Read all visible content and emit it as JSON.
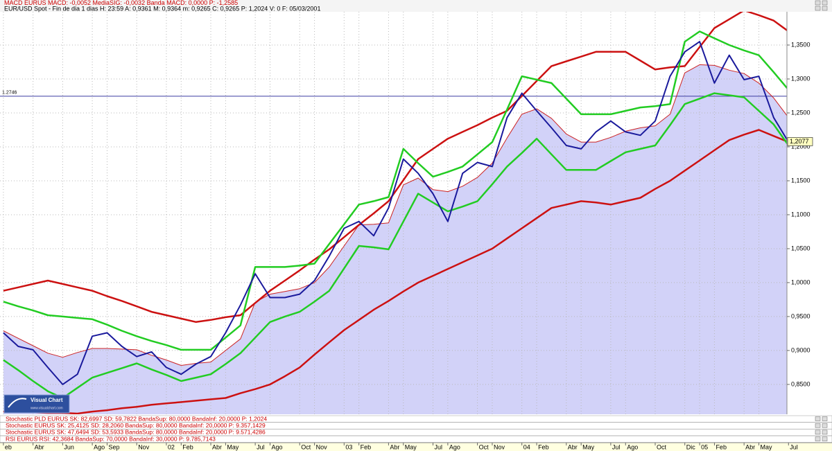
{
  "header": {
    "line1": "MACD EURUS MACD: -0,0052 MediaSIG: -0,0032 Banda MACD: 0,0000 P: -1,2585",
    "line2": "EUR/USD Spot - Fin de dia 1 dias H: 23:59 A: 0,9361 M: 0,9364 m: 0,9265 C: 0,9265 P: 1,2024 V: 0 F: 05/03/2001"
  },
  "logo": {
    "title": "Visual Chart",
    "url": "www.visualchart.com"
  },
  "indicators": [
    "Stochastic PLD EURUS SK: 82,6997 SD: 59,7822 BandaSup: 80,0000 BandaInf: 20,0000 P: 1,2024",
    "Stochastic EURUS SK: 25,4125 SD: 28,2060 BandaSup: 80,0000 BandaInf: 20,0000 P: 9.357,1429",
    "Stochastic EURUS SK: 47,6494 SD: 53,5933 BandaSup: 80,0000 BandaInf: 20,0000 P: 9.571,4286",
    "RSI EURUS RSI: 42,3684 BandaSup: 70,0000 BandaInf: 30,0000 P: 9.785,7143"
  ],
  "chart_data": {
    "type": "line",
    "grid": true,
    "x": [
      0,
      1,
      2,
      3,
      4,
      5,
      6,
      7,
      8,
      9,
      10,
      11,
      12,
      13,
      14,
      15,
      16,
      17,
      18,
      19,
      20,
      21,
      22,
      23,
      24,
      25,
      26,
      27,
      28,
      29,
      30,
      31,
      32,
      33,
      34,
      35,
      36,
      37,
      38,
      39,
      40,
      41,
      42,
      43,
      44,
      45,
      46,
      47,
      48,
      49,
      50,
      51,
      52,
      53
    ],
    "xlim": [
      -0.23,
      52.8
    ],
    "xticks": [
      {
        "value": 0,
        "label": "eb"
      },
      {
        "value": 2,
        "label": "Abr"
      },
      {
        "value": 4,
        "label": "Jun"
      },
      {
        "value": 6,
        "label": "Ago"
      },
      {
        "value": 7,
        "label": "Sep"
      },
      {
        "value": 9,
        "label": "Nov"
      },
      {
        "value": 11,
        "label": "02"
      },
      {
        "value": 12,
        "label": "Feb"
      },
      {
        "value": 14,
        "label": "Abr"
      },
      {
        "value": 15,
        "label": "May"
      },
      {
        "value": 17,
        "label": "Jul"
      },
      {
        "value": 18,
        "label": "Ago"
      },
      {
        "value": 20,
        "label": "Oct"
      },
      {
        "value": 21,
        "label": "Nov"
      },
      {
        "value": 23,
        "label": "03"
      },
      {
        "value": 24,
        "label": "Feb"
      },
      {
        "value": 26,
        "label": "Abr"
      },
      {
        "value": 27,
        "label": "May"
      },
      {
        "value": 29,
        "label": "Jul"
      },
      {
        "value": 30,
        "label": "Ago"
      },
      {
        "value": 32,
        "label": "Oct"
      },
      {
        "value": 33,
        "label": "Nov"
      },
      {
        "value": 35,
        "label": "04"
      },
      {
        "value": 36,
        "label": "Feb"
      },
      {
        "value": 38,
        "label": "Abr"
      },
      {
        "value": 39,
        "label": "May"
      },
      {
        "value": 41,
        "label": "Jul"
      },
      {
        "value": 42,
        "label": "Ago"
      },
      {
        "value": 44,
        "label": "Oct"
      },
      {
        "value": 46,
        "label": "Dic"
      },
      {
        "value": 47,
        "label": "05"
      },
      {
        "value": 48,
        "label": "Feb"
      },
      {
        "value": 50,
        "label": "Abr"
      },
      {
        "value": 51,
        "label": "May"
      },
      {
        "value": 53,
        "label": "Jul"
      }
    ],
    "ylim": [
      0.806,
      1.399
    ],
    "yticks": [
      {
        "value": 0.85,
        "label": "0,8500"
      },
      {
        "value": 0.9,
        "label": "0,9000"
      },
      {
        "value": 0.95,
        "label": "0,9500"
      },
      {
        "value": 1.0,
        "label": "1,0000"
      },
      {
        "value": 1.05,
        "label": "1,0500"
      },
      {
        "value": 1.1,
        "label": "1,1000"
      },
      {
        "value": 1.15,
        "label": "1,1500"
      },
      {
        "value": 1.2,
        "label": "1,2000"
      },
      {
        "value": 1.25,
        "label": "1,2500"
      },
      {
        "value": 1.3,
        "label": "1,3000"
      },
      {
        "value": 1.35,
        "label": "1,3500"
      }
    ],
    "hline": {
      "value": 1.2746,
      "label": "1.2746",
      "color": "#3a3aa0"
    },
    "last_price": {
      "value": 1.2077,
      "label": "1,2077"
    },
    "series": [
      {
        "color": "#cc2222",
        "width": 1,
        "area": "#d2d2f8",
        "values": [
          0.929,
          0.918,
          0.907,
          0.896,
          0.89,
          0.897,
          0.903,
          0.903,
          0.902,
          0.901,
          0.893,
          0.886,
          0.878,
          0.881,
          0.883,
          0.9,
          0.917,
          0.971,
          0.983,
          0.987,
          0.991,
          1.0,
          1.023,
          1.054,
          1.085,
          1.086,
          1.088,
          1.144,
          1.154,
          1.137,
          1.134,
          1.142,
          1.155,
          1.176,
          1.213,
          1.248,
          1.256,
          1.242,
          1.219,
          1.207,
          1.207,
          1.214,
          1.223,
          1.228,
          1.231,
          1.248,
          1.309,
          1.321,
          1.32,
          1.313,
          1.308,
          1.294,
          1.272,
          1.243
        ]
      },
      {
        "color": "#cc1111",
        "width": 2.5,
        "values": [
          0.81,
          0.809,
          0.809,
          0.808,
          0.808,
          0.807,
          0.81,
          0.812,
          0.815,
          0.817,
          0.82,
          0.822,
          0.824,
          0.826,
          0.828,
          0.83,
          0.837,
          0.843,
          0.85,
          0.862,
          0.875,
          0.894,
          0.912,
          0.93,
          0.945,
          0.96,
          0.973,
          0.987,
          1.0,
          1.01,
          1.02,
          1.03,
          1.04,
          1.05,
          1.065,
          1.08,
          1.095,
          1.11,
          1.115,
          1.12,
          1.118,
          1.115,
          1.12,
          1.125,
          1.138,
          1.15,
          1.165,
          1.18,
          1.195,
          1.21,
          1.218,
          1.225,
          1.216,
          1.207
        ]
      },
      {
        "color": "#cc1111",
        "width": 2.5,
        "values": [
          0.988,
          0.993,
          0.998,
          1.003,
          0.998,
          0.993,
          0.988,
          0.98,
          0.973,
          0.965,
          0.957,
          0.952,
          0.947,
          0.942,
          0.945,
          0.949,
          0.952,
          0.97,
          0.988,
          1.003,
          1.018,
          1.034,
          1.049,
          1.067,
          1.085,
          1.102,
          1.12,
          1.151,
          1.182,
          1.197,
          1.212,
          1.222,
          1.232,
          1.243,
          1.253,
          1.275,
          1.297,
          1.319,
          1.326,
          1.333,
          1.34,
          1.34,
          1.34,
          1.327,
          1.314,
          1.317,
          1.319,
          1.347,
          1.375,
          1.388,
          1.401,
          1.394,
          1.386,
          1.37
        ]
      },
      {
        "color": "#22cc22",
        "width": 2.5,
        "values": [
          0.972,
          0.965,
          0.959,
          0.952,
          0.95,
          0.948,
          0.946,
          0.938,
          0.929,
          0.921,
          0.914,
          0.908,
          0.901,
          0.901,
          0.901,
          0.919,
          0.937,
          1.023,
          1.023,
          1.023,
          1.025,
          1.028,
          1.057,
          1.086,
          1.115,
          1.12,
          1.126,
          1.197,
          1.176,
          1.156,
          1.163,
          1.171,
          1.189,
          1.207,
          1.255,
          1.304,
          1.299,
          1.294,
          1.271,
          1.248,
          1.248,
          1.248,
          1.253,
          1.258,
          1.26,
          1.263,
          1.355,
          1.37,
          1.36,
          1.35,
          1.342,
          1.335,
          1.31,
          1.284
        ]
      },
      {
        "color": "#22cc22",
        "width": 2.5,
        "values": [
          0.886,
          0.871,
          0.855,
          0.84,
          0.83,
          0.845,
          0.86,
          0.867,
          0.874,
          0.881,
          0.872,
          0.864,
          0.855,
          0.86,
          0.865,
          0.88,
          0.896,
          0.919,
          0.942,
          0.95,
          0.957,
          0.972,
          0.988,
          1.021,
          1.054,
          1.052,
          1.049,
          1.09,
          1.131,
          1.118,
          1.105,
          1.112,
          1.12,
          1.145,
          1.171,
          1.191,
          1.212,
          1.189,
          1.166,
          1.166,
          1.166,
          1.179,
          1.192,
          1.197,
          1.202,
          1.232,
          1.263,
          1.271,
          1.279,
          1.276,
          1.273,
          1.253,
          1.233,
          1.202
        ]
      },
      {
        "color": "#1a1a9c",
        "width": 2,
        "values": [
          0.926,
          0.906,
          0.901,
          0.875,
          0.85,
          0.865,
          0.921,
          0.926,
          0.906,
          0.891,
          0.898,
          0.875,
          0.865,
          0.88,
          0.891,
          0.926,
          0.967,
          1.013,
          0.978,
          0.978,
          0.983,
          1.003,
          1.039,
          1.08,
          1.09,
          1.069,
          1.11,
          1.182,
          1.161,
          1.131,
          1.09,
          1.161,
          1.177,
          1.171,
          1.243,
          1.279,
          1.253,
          1.228,
          1.202,
          1.197,
          1.222,
          1.238,
          1.222,
          1.217,
          1.238,
          1.304,
          1.34,
          1.355,
          1.294,
          1.335,
          1.299,
          1.304,
          1.243,
          1.207
        ]
      }
    ]
  }
}
